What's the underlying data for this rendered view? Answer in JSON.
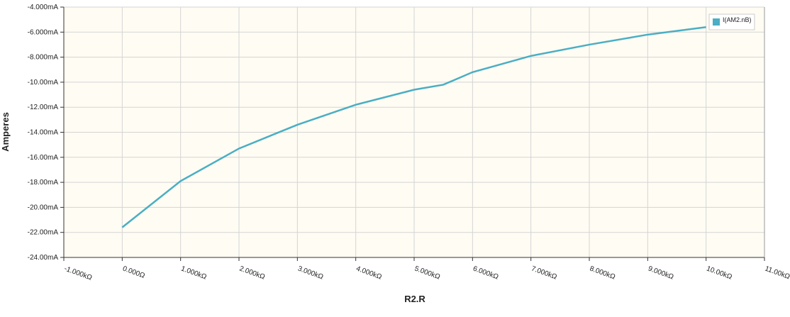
{
  "chart_data": {
    "type": "line",
    "x_label": "R2.R",
    "y_label": "Amperes",
    "x": [
      0,
      1,
      2,
      3,
      4,
      5,
      5.5,
      6,
      7,
      8,
      9,
      10
    ],
    "series": [
      {
        "name": "I(AM2.nB)",
        "color": "#4aaec4",
        "values": [
          -21.6,
          -17.9,
          -15.3,
          -13.4,
          -11.8,
          -10.6,
          -10.2,
          -9.2,
          -7.9,
          -7.0,
          -6.2,
          -5.6
        ]
      }
    ],
    "xlim": [
      -1,
      11
    ],
    "xticks": [
      {
        "value": -1,
        "label": "-1.000kΩ"
      },
      {
        "value": 0,
        "label": "0.000Ω"
      },
      {
        "value": 1,
        "label": "1.000kΩ"
      },
      {
        "value": 2,
        "label": "2.000kΩ"
      },
      {
        "value": 3,
        "label": "3.000kΩ"
      },
      {
        "value": 4,
        "label": "4.000kΩ"
      },
      {
        "value": 5,
        "label": "5.000kΩ"
      },
      {
        "value": 6,
        "label": "6.000kΩ"
      },
      {
        "value": 7,
        "label": "7.000kΩ"
      },
      {
        "value": 8,
        "label": "8.000kΩ"
      },
      {
        "value": 9,
        "label": "9.000kΩ"
      },
      {
        "value": 10,
        "label": "10.00kΩ"
      },
      {
        "value": 11,
        "label": "11.00kΩ"
      }
    ],
    "ylim": [
      -24,
      -4
    ],
    "yticks": [
      {
        "value": -24,
        "label": "-24.00mA"
      },
      {
        "value": -22,
        "label": "-22.00mA"
      },
      {
        "value": -20,
        "label": "-20.00mA"
      },
      {
        "value": -18,
        "label": "-18.00mA"
      },
      {
        "value": -16,
        "label": "-16.00mA"
      },
      {
        "value": -14,
        "label": "-14.00mA"
      },
      {
        "value": -12,
        "label": "-12.00mA"
      },
      {
        "value": -10,
        "label": "-10.00mA"
      },
      {
        "value": -8,
        "label": "-8.000mA"
      },
      {
        "value": -6,
        "label": "-6.000mA"
      },
      {
        "value": -4,
        "label": "-4.000mA"
      }
    ],
    "grid": true,
    "legend": "top-right"
  }
}
